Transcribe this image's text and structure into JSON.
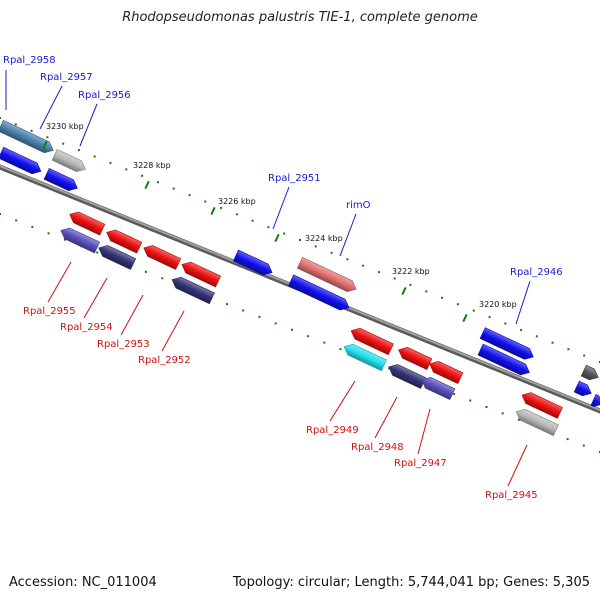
{
  "title": "Rhodopseudomonas palustris TIE-1, complete genome",
  "footer": {
    "accession": "Accession: NC_011004",
    "summary": "Topology: circular; Length: 5,744,041 bp; Genes: 5,305"
  },
  "colors": {
    "backbone": "#808080",
    "tick": "#0a7d0a",
    "forward_label": "#1a1acc",
    "reverse_label": "#cc1111",
    "blue": "#1010ee",
    "red": "#ee1111",
    "dark_blue": "#333377",
    "purple": "#5a4fbf",
    "cyan": "#22e0ee",
    "gray": "#b8b8b8",
    "dark_gray": "#555555",
    "steel": "#4a7fae",
    "pink": "#e07070"
  },
  "ticks": [
    {
      "label": "3230 kbp"
    },
    {
      "label": "3228 kbp"
    },
    {
      "label": "3226 kbp"
    },
    {
      "label": "3224 kbp"
    },
    {
      "label": "3222 kbp"
    },
    {
      "label": "3220 kbp"
    }
  ],
  "forward_genes": [
    {
      "label": "Rpal_2958"
    },
    {
      "label": "Rpal_2957"
    },
    {
      "label": "Rpal_2956"
    },
    {
      "label": "Rpal_2951"
    },
    {
      "label": "rimO"
    },
    {
      "label": "Rpal_2946"
    }
  ],
  "reverse_genes": [
    {
      "label": "Rpal_2955"
    },
    {
      "label": "Rpal_2954"
    },
    {
      "label": "Rpal_2953"
    },
    {
      "label": "Rpal_2952"
    },
    {
      "label": "Rpal_2949"
    },
    {
      "label": "Rpal_2948"
    },
    {
      "label": "Rpal_2947"
    },
    {
      "label": "Rpal_2945"
    }
  ]
}
